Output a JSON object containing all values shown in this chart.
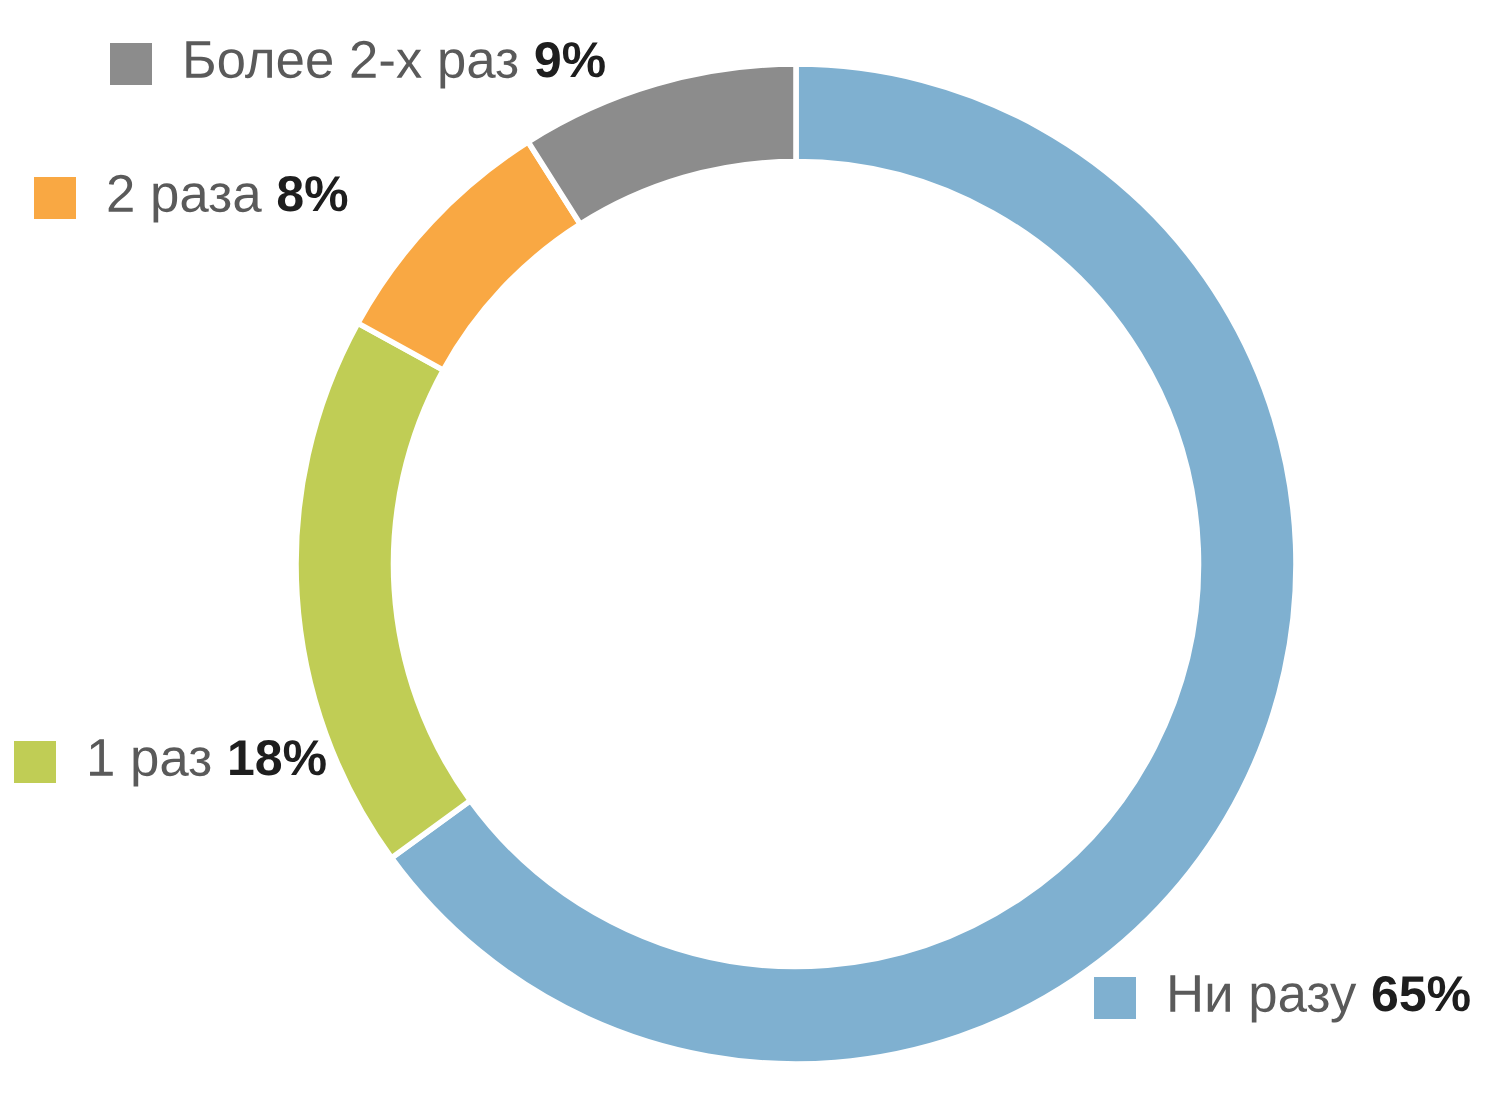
{
  "chart_data": {
    "type": "donut",
    "categories": [
      "Ни разу",
      "1 раз",
      "2 раза",
      "Более 2-х раз"
    ],
    "values": [
      65,
      18,
      8,
      9
    ],
    "colors": [
      "#7fb0d0",
      "#c0cd55",
      "#f9a843",
      "#8c8c8c"
    ],
    "value_labels": [
      "65%",
      "18%",
      "8%",
      "9%"
    ],
    "legend": "left"
  }
}
